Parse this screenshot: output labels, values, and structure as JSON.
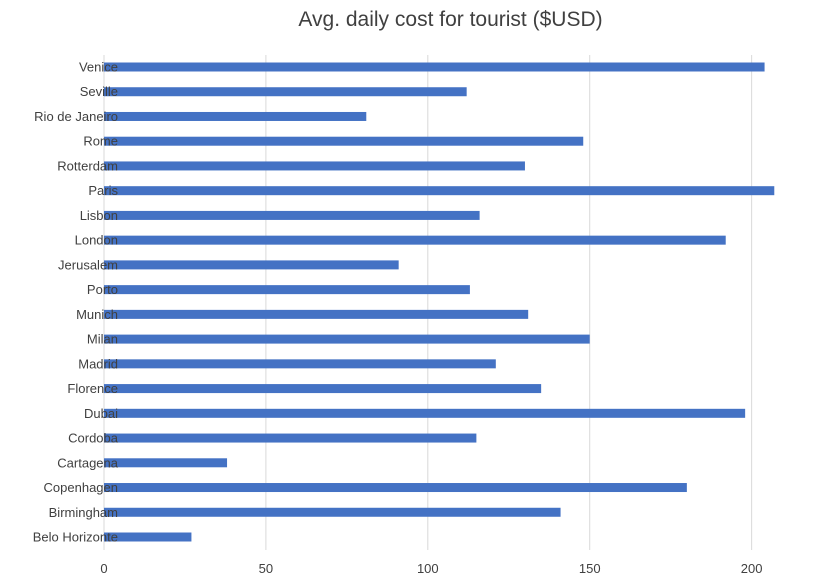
{
  "chart_data": {
    "type": "bar",
    "orientation": "horizontal",
    "title": "Avg. daily cost for tourist ($USD)",
    "xlabel": "",
    "ylabel": "",
    "categories": [
      "Venice",
      "Seville",
      "Rio de Janeiro",
      "Rome",
      "Rotterdam",
      "Paris",
      "Lisbon",
      "London",
      "Jerusalem",
      "Porto",
      "Munich",
      "Milan",
      "Madrid",
      "Florence",
      "Dubai",
      "Cordoba",
      "Cartagena",
      "Copenhagen",
      "Birmingham",
      "Belo Horizonte"
    ],
    "values": [
      204,
      112,
      81,
      148,
      130,
      207,
      116,
      192,
      91,
      113,
      131,
      150,
      121,
      135,
      198,
      115,
      38,
      180,
      141,
      27
    ],
    "xlim": [
      0,
      210
    ],
    "xticks": [
      0,
      50,
      100,
      150,
      200
    ],
    "grid": "vertical",
    "legend": "none",
    "bar_color": "#4472c4"
  }
}
